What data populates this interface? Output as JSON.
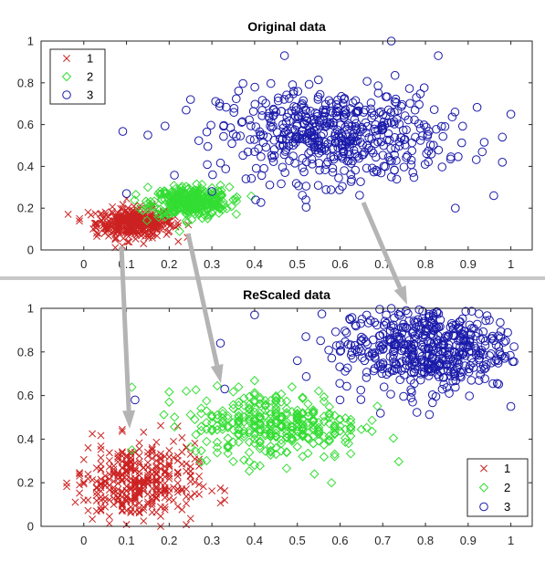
{
  "chart_data": [
    {
      "type": "scatter",
      "title": "Original data",
      "xlabel": "",
      "ylabel": "",
      "xlim": [
        -0.1,
        1.05
      ],
      "ylim": [
        0,
        1
      ],
      "xticks": [
        "0",
        "0.1",
        "0.2",
        "0.3",
        "0.4",
        "0.5",
        "0.6",
        "0.7",
        "0.8",
        "0.9",
        "1"
      ],
      "yticks": [
        "0",
        "0.2",
        "0.4",
        "0.6",
        "0.8",
        "1"
      ],
      "grid": false,
      "legend_position": "top-left",
      "series": [
        {
          "name": "1",
          "marker": "x",
          "color": "#cc2222",
          "cluster": {
            "center": [
              0.12,
              0.13
            ],
            "spread": [
              0.045,
              0.035
            ],
            "count": 380
          },
          "points": [
            [
              -0.01,
              0.15
            ],
            [
              0.01,
              0.18
            ],
            [
              0.16,
              0.22
            ],
            [
              0.2,
              0.09
            ],
            [
              0.19,
              0.16
            ],
            [
              0.03,
              0.08
            ],
            [
              0.09,
              0.02
            ],
            [
              0.14,
              0.03
            ],
            [
              0.22,
              0.13
            ]
          ]
        },
        {
          "name": "2",
          "marker": "diamond",
          "color": "#33dd33",
          "cluster": {
            "center": [
              0.25,
              0.23
            ],
            "spread": [
              0.045,
              0.035
            ],
            "count": 330
          },
          "points": [
            [
              0.15,
              0.3
            ],
            [
              0.35,
              0.24
            ],
            [
              0.32,
              0.31
            ],
            [
              0.18,
              0.17
            ],
            [
              0.29,
              0.15
            ],
            [
              0.24,
              0.14
            ]
          ]
        },
        {
          "name": "3",
          "marker": "circle",
          "color": "#1a1aaa",
          "cluster": {
            "center": [
              0.58,
              0.55
            ],
            "spread": [
              0.13,
              0.11
            ],
            "count": 520
          },
          "points": [
            [
              0.72,
              1.0
            ],
            [
              0.1,
              0.27
            ],
            [
              0.3,
              0.28
            ],
            [
              0.98,
              0.42
            ],
            [
              1.0,
              0.65
            ],
            [
              0.98,
              0.54
            ],
            [
              0.96,
              0.26
            ],
            [
              0.47,
              0.93
            ],
            [
              0.25,
              0.72
            ],
            [
              0.15,
              0.55
            ],
            [
              0.83,
              0.93
            ],
            [
              0.87,
              0.2
            ],
            [
              0.52,
              0.24
            ]
          ]
        }
      ]
    },
    {
      "type": "scatter",
      "title": "ReScaled data",
      "xlabel": "",
      "ylabel": "",
      "xlim": [
        -0.1,
        1.05
      ],
      "ylim": [
        0,
        1
      ],
      "xticks": [
        "0",
        "0.1",
        "0.2",
        "0.3",
        "0.4",
        "0.5",
        "0.6",
        "0.7",
        "0.8",
        "0.9",
        "1"
      ],
      "yticks": [
        "0",
        "0.2",
        "0.4",
        "0.6",
        "0.8",
        "1"
      ],
      "grid": false,
      "legend_position": "bottom-right",
      "series": [
        {
          "name": "1",
          "marker": "x",
          "color": "#cc2222",
          "cluster": {
            "center": [
              0.12,
              0.2
            ],
            "spread": [
              0.07,
              0.09
            ],
            "count": 380
          },
          "points": [
            [
              0.0,
              0.12
            ],
            [
              -0.01,
              0.19
            ],
            [
              0.26,
              0.15
            ],
            [
              0.33,
              0.12
            ],
            [
              0.27,
              0.23
            ],
            [
              0.18,
              0.0
            ],
            [
              0.19,
              0.32
            ],
            [
              0.24,
              0.36
            ],
            [
              0.22,
              0.46
            ]
          ]
        },
        {
          "name": "2",
          "marker": "diamond",
          "color": "#33dd33",
          "cluster": {
            "center": [
              0.45,
              0.47
            ],
            "spread": [
              0.1,
              0.08
            ],
            "count": 330
          },
          "points": [
            [
              0.24,
              0.62
            ],
            [
              0.58,
              0.2
            ],
            [
              0.62,
              0.38
            ],
            [
              0.2,
              0.57
            ],
            [
              0.26,
              0.49
            ],
            [
              0.54,
              0.24
            ]
          ]
        },
        {
          "name": "3",
          "marker": "circle",
          "color": "#1a1aaa",
          "cluster": {
            "center": [
              0.8,
              0.82
            ],
            "spread": [
              0.1,
              0.1
            ],
            "count": 520
          },
          "points": [
            [
              0.12,
              0.58
            ],
            [
              0.32,
              0.84
            ],
            [
              0.4,
              0.97
            ],
            [
              0.52,
              0.87
            ],
            [
              0.33,
              0.63
            ],
            [
              0.6,
              0.58
            ],
            [
              0.5,
              0.76
            ],
            [
              1.0,
              0.55
            ],
            [
              0.77,
              0.57
            ],
            [
              0.72,
              1.0
            ]
          ]
        }
      ]
    }
  ]
}
